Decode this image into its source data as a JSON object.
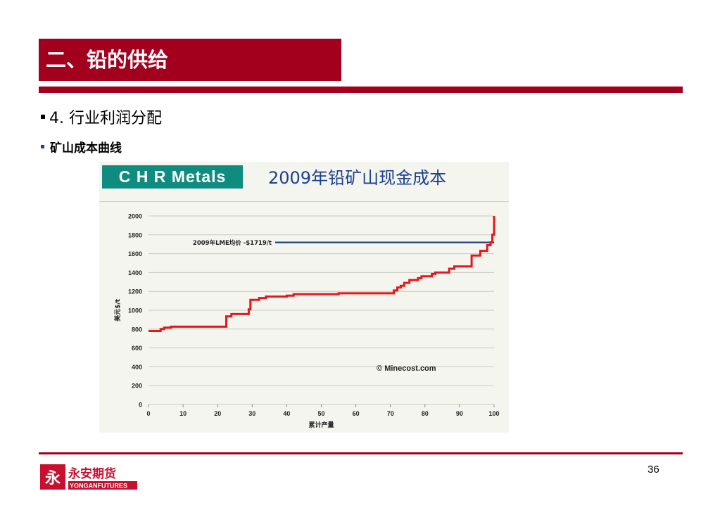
{
  "slide": {
    "title": "二、铅的供给",
    "bullet1": "4. 行业利润分配",
    "bullet2": "矿山成本曲线",
    "page_number": "36",
    "accent_color": "#a3001e"
  },
  "chart_header": {
    "badge": "C H R  Metals",
    "title": "2009年铅矿山现金成本"
  },
  "logo": {
    "mark": "永",
    "name_cn": "永安期货",
    "name_en": "YONGANFUTURES"
  },
  "chart_data": {
    "type": "line",
    "xlabel": "累计产量",
    "ylabel": "美元$/t",
    "xlim": [
      0,
      100
    ],
    "ylim": [
      0,
      2000
    ],
    "xticks": [
      0,
      10,
      20,
      30,
      40,
      50,
      60,
      70,
      80,
      90,
      100
    ],
    "yticks": [
      0,
      200,
      400,
      600,
      800,
      1000,
      1200,
      1400,
      1600,
      1800,
      2000
    ],
    "grid": true,
    "annotation": "© Minecost.com",
    "reference_line": {
      "label": "2009年LME均价  -$1719/t",
      "value": 1719,
      "color": "#1f3f7f"
    },
    "series": [
      {
        "color": "#e8161b",
        "x": [
          0,
          3.5,
          3.5,
          4.5,
          4.5,
          6.5,
          6.5,
          22.5,
          22.5,
          24,
          24,
          29,
          29,
          29.5,
          29.5,
          32,
          32,
          34,
          34,
          40,
          40,
          42,
          42,
          55,
          55,
          71,
          71,
          72,
          72,
          73,
          73,
          74,
          74,
          75.5,
          75.5,
          78,
          78,
          79,
          79,
          82,
          82,
          83,
          83,
          87,
          87,
          88.5,
          88.5,
          93.5,
          93.5,
          96,
          96,
          98,
          98,
          99,
          99,
          99.5,
          99.5,
          100,
          100
        ],
        "y": [
          780,
          780,
          800,
          800,
          815,
          815,
          825,
          825,
          935,
          935,
          960,
          960,
          1010,
          1010,
          1110,
          1110,
          1130,
          1130,
          1145,
          1145,
          1155,
          1155,
          1170,
          1170,
          1180,
          1180,
          1210,
          1210,
          1240,
          1240,
          1260,
          1260,
          1290,
          1290,
          1320,
          1320,
          1340,
          1340,
          1360,
          1360,
          1385,
          1385,
          1400,
          1400,
          1440,
          1440,
          1465,
          1465,
          1580,
          1580,
          1630,
          1630,
          1690,
          1690,
          1720,
          1720,
          1800,
          1800,
          2000
        ]
      }
    ]
  }
}
